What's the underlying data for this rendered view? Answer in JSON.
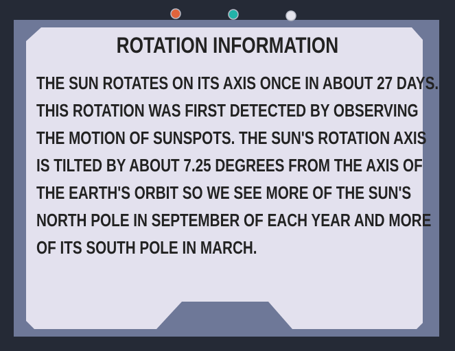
{
  "panel": {
    "title": "ROTATION INFORMATION",
    "lines": [
      "THE SUN ROTATES ON ITS AXIS ONCE IN ABOUT 27 DAYS.",
      "THIS ROTATION WAS FIRST DETECTED BY OBSERVING",
      "THE MOTION OF SUNSPOTS. THE SUN'S ROTATION AXIS",
      "IS TILTED BY ABOUT 7.25 DEGREES FROM THE AXIS OF",
      "THE EARTH'S ORBIT SO WE SEE MORE OF THE SUN'S",
      "NORTH POLE IN SEPTEMBER OF EACH YEAR AND MORE",
      "OF ITS SOUTH POLE IN MARCH."
    ]
  },
  "indicators": [
    {
      "name": "indicator-light-orange",
      "color": "#e0643c"
    },
    {
      "name": "indicator-light-teal",
      "color": "#22b2a8"
    },
    {
      "name": "indicator-light-white",
      "color": "#e4e4ec"
    }
  ],
  "colors": {
    "outer_frame": "#252a36",
    "bezel": "#6e7898",
    "screen": "#e3e1ee",
    "text": "#222222"
  }
}
